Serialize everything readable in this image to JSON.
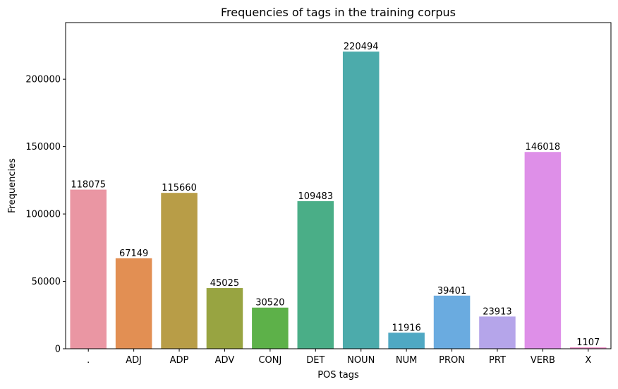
{
  "chart_data": {
    "type": "bar",
    "title": "Frequencies of tags in the training corpus",
    "xlabel": "POS tags",
    "ylabel": "Frequencies",
    "categories": [
      ".",
      "ADJ",
      "ADP",
      "ADV",
      "CONJ",
      "DET",
      "NOUN",
      "NUM",
      "PRON",
      "PRT",
      "VERB",
      "X"
    ],
    "values": [
      118075,
      67149,
      115660,
      45025,
      30520,
      109483,
      220494,
      11916,
      39401,
      23913,
      146018,
      1107
    ],
    "colors": [
      "#ea96a3",
      "#e28f53",
      "#b89d47",
      "#98a441",
      "#5db149",
      "#4aae87",
      "#4cabab",
      "#4fa8c3",
      "#6aabe0",
      "#b5a5ea",
      "#de8fe8",
      "#ec94c8"
    ],
    "yticks": [
      0,
      50000,
      100000,
      150000,
      200000
    ],
    "ylim": [
      0,
      242000
    ],
    "grid": false,
    "legend": "none"
  }
}
